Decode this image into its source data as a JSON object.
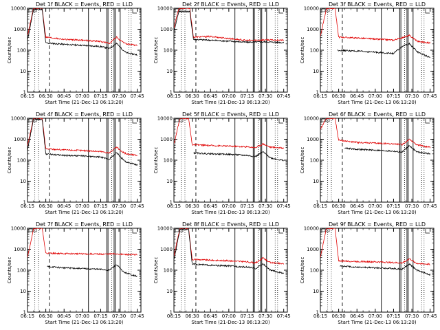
{
  "figure": {
    "xlabel": "Start Time (21-Dec-13 06:13:20)",
    "ylabel": "Counts/sec",
    "x_ticks": [
      "06:15",
      "06:30",
      "06:45",
      "07:00",
      "07:15",
      "07:30",
      "07:45"
    ],
    "y_ticks": [
      "1",
      "10",
      "100",
      "1000",
      "10000"
    ],
    "series_colors": {
      "events": "#000000",
      "lld": "#e00000"
    }
  },
  "chart_data": [
    {
      "type": "line",
      "title": "Det 1f BLACK = Events, RED = LLD",
      "xlabel": "Start Time (21-Dec-13 06:13:20)",
      "ylabel": "Counts/sec",
      "y_scale": "log",
      "ylim": [
        1,
        10000
      ],
      "series": [
        {
          "legend": "Events",
          "color": "#000000",
          "x": [
            "06:15",
            "06:20",
            "06:27",
            "06:30",
            "06:45",
            "07:00",
            "07:15",
            "07:22",
            "07:28",
            "07:32",
            "07:36",
            "07:45"
          ],
          "values": [
            300,
            9000,
            9000,
            220,
            190,
            170,
            150,
            120,
            210,
            120,
            75,
            60
          ]
        },
        {
          "legend": "LLD",
          "color": "#e00000",
          "x": [
            "06:15",
            "06:20",
            "06:27",
            "06:30",
            "06:45",
            "07:00",
            "07:15",
            "07:22",
            "07:28",
            "07:32",
            "07:36",
            "07:45"
          ],
          "values": [
            500,
            10000,
            10000,
            420,
            330,
            300,
            260,
            210,
            420,
            260,
            200,
            170
          ]
        }
      ]
    },
    {
      "type": "line",
      "title": "Det 2f BLACK = Events, RED = LLD",
      "xlabel": "Start Time (21-Dec-13 06:13:20)",
      "ylabel": "Counts/sec",
      "y_scale": "log",
      "ylim": [
        1,
        10000
      ],
      "series": [
        {
          "legend": "Events",
          "color": "#000000",
          "x": [
            "06:15",
            "06:19",
            "06:28",
            "06:31",
            "06:45",
            "07:00",
            "07:15",
            "07:30",
            "07:45"
          ],
          "values": [
            800,
            7000,
            7000,
            330,
            300,
            270,
            240,
            250,
            230
          ]
        },
        {
          "legend": "LLD",
          "color": "#e00000",
          "x": [
            "06:15",
            "06:19",
            "06:28",
            "06:31",
            "06:45",
            "07:00",
            "07:15",
            "07:30",
            "07:45"
          ],
          "values": [
            1200,
            10000,
            10000,
            420,
            450,
            360,
            290,
            310,
            300
          ]
        }
      ]
    },
    {
      "type": "line",
      "title": "Det 3f BLACK = Events, RED = LLD",
      "xlabel": "Start Time (21-Dec-13 06:13:20)",
      "ylabel": "Counts/sec",
      "y_scale": "log",
      "ylim": [
        1,
        10000
      ],
      "series": [
        {
          "legend": "Events",
          "color": "#000000",
          "x": [
            "06:29",
            "06:45",
            "07:00",
            "07:15",
            "07:22",
            "07:28",
            "07:35",
            "07:45"
          ],
          "values": [
            100,
            90,
            80,
            70,
            150,
            200,
            80,
            45
          ]
        },
        {
          "legend": "LLD",
          "color": "#e00000",
          "x": [
            "06:15",
            "06:20",
            "06:27",
            "06:30",
            "06:45",
            "07:00",
            "07:15",
            "07:28",
            "07:35",
            "07:45"
          ],
          "values": [
            450,
            10000,
            10000,
            420,
            380,
            340,
            300,
            500,
            260,
            220
          ]
        }
      ]
    },
    {
      "type": "line",
      "title": "Det 4f BLACK = Events, RED = LLD",
      "xlabel": "Start Time (21-Dec-13 06:13:20)",
      "ylabel": "Counts/sec",
      "y_scale": "log",
      "ylim": [
        1,
        10000
      ],
      "series": [
        {
          "legend": "Events",
          "color": "#000000",
          "x": [
            "06:15",
            "06:20",
            "06:27",
            "06:30",
            "06:45",
            "07:00",
            "07:15",
            "07:22",
            "07:28",
            "07:32",
            "07:36",
            "07:45"
          ],
          "values": [
            300,
            9000,
            9000,
            200,
            170,
            160,
            140,
            110,
            230,
            130,
            80,
            60
          ]
        },
        {
          "legend": "LLD",
          "color": "#e00000",
          "x": [
            "06:15",
            "06:20",
            "06:27",
            "06:30",
            "06:45",
            "07:00",
            "07:15",
            "07:22",
            "07:28",
            "07:32",
            "07:36",
            "07:45"
          ],
          "values": [
            500,
            10000,
            10000,
            350,
            310,
            290,
            260,
            220,
            420,
            260,
            200,
            170
          ]
        }
      ]
    },
    {
      "type": "line",
      "title": "Det 5f BLACK = Events, RED = LLD",
      "xlabel": "Start Time (21-Dec-13 06:13:20)",
      "ylabel": "Counts/sec",
      "y_scale": "log",
      "ylim": [
        1,
        10000
      ],
      "series": [
        {
          "legend": "Events",
          "color": "#000000",
          "x": [
            "06:31",
            "06:45",
            "07:00",
            "07:15",
            "07:22",
            "07:28",
            "07:34",
            "07:45"
          ],
          "values": [
            220,
            200,
            190,
            170,
            150,
            250,
            130,
            95
          ]
        },
        {
          "legend": "LLD",
          "color": "#e00000",
          "x": [
            "06:15",
            "06:20",
            "06:27",
            "06:30",
            "06:45",
            "07:00",
            "07:15",
            "07:22",
            "07:28",
            "07:34",
            "07:45"
          ],
          "values": [
            600,
            10000,
            10000,
            550,
            500,
            470,
            430,
            400,
            600,
            420,
            380
          ]
        }
      ]
    },
    {
      "type": "line",
      "title": "Det 6f BLACK = Events, RED = LLD",
      "xlabel": "Start Time (21-Dec-13 06:13:20)",
      "ylabel": "Counts/sec",
      "y_scale": "log",
      "ylim": [
        1,
        10000
      ],
      "series": [
        {
          "legend": "Events",
          "color": "#000000",
          "x": [
            "06:35",
            "06:45",
            "07:00",
            "07:15",
            "07:22",
            "07:28",
            "07:34",
            "07:45"
          ],
          "values": [
            380,
            330,
            300,
            270,
            240,
            500,
            250,
            200
          ]
        },
        {
          "legend": "LLD",
          "color": "#e00000",
          "x": [
            "06:15",
            "06:20",
            "06:27",
            "06:30",
            "06:45",
            "07:00",
            "07:15",
            "07:22",
            "07:28",
            "07:34",
            "07:45"
          ],
          "values": [
            3000,
            10000,
            10000,
            900,
            700,
            650,
            600,
            550,
            1000,
            550,
            400
          ]
        }
      ]
    },
    {
      "type": "line",
      "title": "Det 7f BLACK = Events, RED = LLD",
      "xlabel": "Start Time (21-Dec-13 06:13:20)",
      "ylabel": "Counts/sec",
      "y_scale": "log",
      "ylim": [
        1,
        10000
      ],
      "series": [
        {
          "legend": "Events",
          "color": "#000000",
          "x": [
            "06:31",
            "06:45",
            "07:00",
            "07:15",
            "07:22",
            "07:28",
            "07:34",
            "07:45"
          ],
          "values": [
            150,
            130,
            120,
            110,
            100,
            180,
            80,
            50
          ]
        },
        {
          "legend": "LLD",
          "color": "#e00000",
          "x": [
            "06:15",
            "06:20",
            "06:27",
            "06:30",
            "06:45",
            "07:00",
            "07:15",
            "07:28",
            "07:34",
            "07:45"
          ],
          "values": [
            400,
            10000,
            10000,
            650,
            620,
            600,
            580,
            600,
            560,
            550
          ]
        }
      ]
    },
    {
      "type": "line",
      "title": "Det 8f BLACK = Events, RED = LLD",
      "xlabel": "Start Time (21-Dec-13 06:13:20)",
      "ylabel": "Counts/sec",
      "y_scale": "log",
      "ylim": [
        1,
        10000
      ],
      "series": [
        {
          "legend": "Events",
          "color": "#000000",
          "x": [
            "06:15",
            "06:20",
            "06:27",
            "06:30",
            "06:45",
            "07:00",
            "07:15",
            "07:22",
            "07:28",
            "07:34",
            "07:45"
          ],
          "values": [
            300,
            9000,
            9000,
            200,
            170,
            160,
            140,
            120,
            200,
            100,
            70
          ]
        },
        {
          "legend": "LLD",
          "color": "#e00000",
          "x": [
            "06:15",
            "06:20",
            "06:27",
            "06:30",
            "06:45",
            "07:00",
            "07:15",
            "07:22",
            "07:28",
            "07:34",
            "07:45"
          ],
          "values": [
            500,
            10000,
            10000,
            330,
            300,
            280,
            250,
            220,
            380,
            230,
            200
          ]
        }
      ]
    },
    {
      "type": "line",
      "title": "Det 9f BLACK = Events, RED = LLD",
      "xlabel": "Start Time (21-Dec-13 06:13:20)",
      "ylabel": "Counts/sec",
      "y_scale": "log",
      "ylim": [
        1,
        10000
      ],
      "series": [
        {
          "legend": "Events",
          "color": "#000000",
          "x": [
            "06:31",
            "06:45",
            "07:00",
            "07:15",
            "07:22",
            "07:28",
            "07:34",
            "07:45"
          ],
          "values": [
            160,
            140,
            130,
            120,
            110,
            200,
            100,
            60
          ]
        },
        {
          "legend": "LLD",
          "color": "#e00000",
          "x": [
            "06:15",
            "06:20",
            "06:27",
            "06:30",
            "06:45",
            "07:00",
            "07:15",
            "07:22",
            "07:28",
            "07:34",
            "07:45"
          ],
          "values": [
            400,
            10000,
            10000,
            280,
            260,
            250,
            230,
            220,
            350,
            210,
            190
          ]
        }
      ]
    }
  ]
}
